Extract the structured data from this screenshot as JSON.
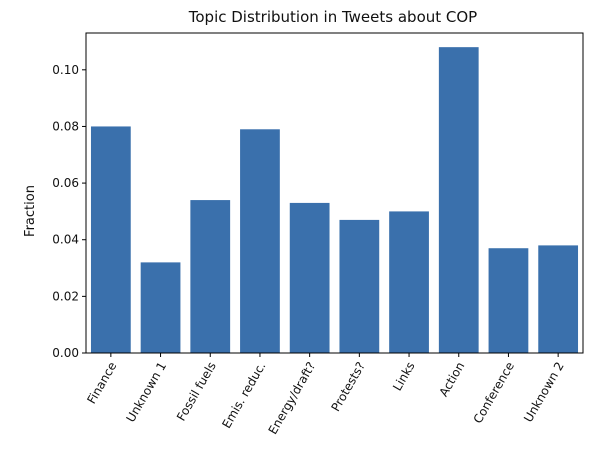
{
  "chart_data": {
    "type": "bar",
    "title": "Topic Distribution in Tweets about COP",
    "xlabel": "",
    "ylabel": "Fraction",
    "categories": [
      "Finance",
      "Unknown 1",
      "Fossil fuels",
      "Emis. reduc.",
      "Energy/draft?",
      "Protests?",
      "Links",
      "Action",
      "Conference",
      "Unknown 2"
    ],
    "values": [
      0.08,
      0.032,
      0.054,
      0.079,
      0.053,
      0.047,
      0.05,
      0.108,
      0.037,
      0.038
    ],
    "ylim": [
      0,
      0.113
    ],
    "yticks": [
      0.0,
      0.02,
      0.04,
      0.06,
      0.08,
      0.1
    ],
    "ytick_labels": [
      "0.00",
      "0.02",
      "0.04",
      "0.06",
      "0.08",
      "0.10"
    ],
    "bar_color": "#3a70ac",
    "grid": false,
    "legend": "none"
  }
}
